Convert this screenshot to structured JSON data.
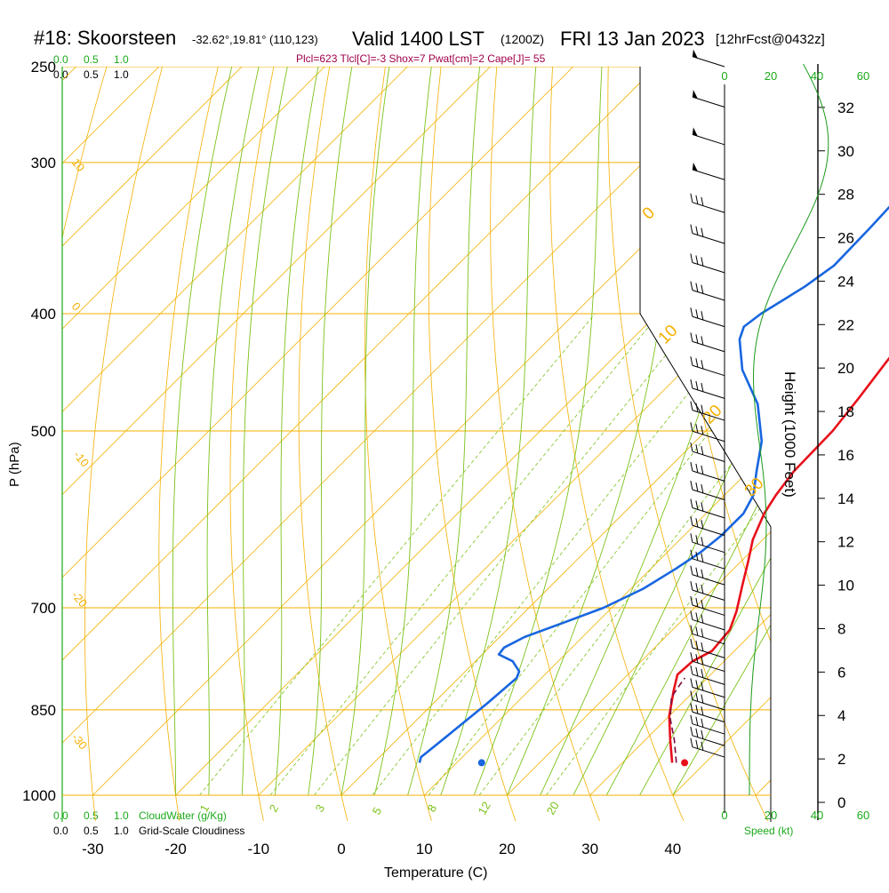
{
  "header": {
    "station": "#18: Skoorsteen",
    "coords": "-32.62°,19.81° (110,123)",
    "valid": "Valid 1400 LST",
    "utc": "(1200Z)",
    "date": "FRI 13 Jan 2023",
    "forecast": "[12hrFcst@0432z]",
    "indices": "Plcl=623 Tlcl[C]=-3 Shox=7 Pwat[cm]=2 Cape[J]= 55"
  },
  "labels": {
    "cloudwater_scale": [
      "0.0",
      "0.5",
      "1.0"
    ],
    "cloudiness_scale": [
      "0.0",
      "0.5",
      "1.0"
    ],
    "cloudwater_title": "CloudWater (g/Kg)",
    "cloudiness_title": "Grid-Scale Cloudiness",
    "speed_title": "Speed (kt)",
    "height_title": "Height (1000 Feet)",
    "pressure_title": "P (hPa)",
    "temperature_title": "Temperature (C)"
  },
  "colors": {
    "isobar": "#f4b000",
    "isotherm": "#f4b000",
    "dry_adiabat": "#f4b000",
    "moist_adiabat": "#7cc21a",
    "mixing_ratio": "#7cc21a",
    "temperature": "#e8101a",
    "dewpoint": "#1866e0",
    "parcel": "#7a0a3c",
    "height_curve": "#1a9a1a",
    "green_text": "#1aaa1a",
    "indices_text": "#a0004a"
  },
  "chart_data": {
    "type": "line",
    "title": "#18: Skoorsteen",
    "xlabel": "Temperature (C)",
    "ylabel": "P (hPa)",
    "x_ticks": [
      -30,
      -20,
      -10,
      0,
      10,
      20,
      30,
      40
    ],
    "y_ticks": [
      250,
      300,
      400,
      500,
      700,
      850,
      1000
    ],
    "dry_adiabat_labels": [
      "10",
      "0",
      "-10",
      "-20",
      "-30"
    ],
    "moist_adiabat_labels": [
      "0",
      "10",
      "20",
      "30"
    ],
    "mixing_ratio_labels": [
      "1",
      "2",
      "3",
      "5",
      "8",
      "12",
      "20"
    ],
    "series": [
      {
        "name": "Temperature",
        "points": [
          [
            36,
            940
          ],
          [
            33,
            900
          ],
          [
            30,
            860
          ],
          [
            27.5,
            820
          ],
          [
            26,
            795
          ],
          [
            26.2,
            775
          ],
          [
            27.3,
            760
          ],
          [
            26.9,
            730
          ],
          [
            25.5,
            705
          ],
          [
            23,
            670
          ],
          [
            20.8,
            640
          ],
          [
            18.8,
            615
          ],
          [
            17,
            585
          ],
          [
            16.2,
            565
          ],
          [
            15.5,
            540
          ],
          [
            15.3,
            500
          ],
          [
            14.5,
            470
          ],
          [
            13.5,
            440
          ],
          [
            12.5,
            410
          ],
          [
            11.5,
            385
          ],
          [
            10,
            350
          ],
          [
            8.5,
            320
          ],
          [
            7,
            300
          ],
          [
            5,
            275
          ],
          [
            3,
            250
          ]
        ]
      },
      {
        "name": "Dewpoint",
        "points": [
          [
            5.5,
            940
          ],
          [
            5,
            930
          ],
          [
            5.5,
            900
          ],
          [
            6.5,
            840
          ],
          [
            7,
            800
          ],
          [
            6.5,
            790
          ],
          [
            4.5,
            775
          ],
          [
            2,
            765
          ],
          [
            1.8,
            755
          ],
          [
            3,
            740
          ],
          [
            6,
            720
          ],
          [
            9,
            700
          ],
          [
            11.5,
            675
          ],
          [
            13,
            650
          ],
          [
            14,
            630
          ],
          [
            14.5,
            610
          ],
          [
            14.5,
            585
          ],
          [
            13.5,
            565
          ],
          [
            11,
            540
          ],
          [
            8,
            510
          ],
          [
            3,
            475
          ],
          [
            -3,
            445
          ],
          [
            -7,
            420
          ],
          [
            -8,
            410
          ],
          [
            -7.5,
            400
          ],
          [
            -5.5,
            380
          ],
          [
            -4.5,
            365
          ],
          [
            -4.7,
            340
          ],
          [
            -5,
            320
          ],
          [
            -5,
            300
          ],
          [
            -4,
            280
          ],
          [
            -4,
            260
          ],
          [
            -3.5,
            250
          ]
        ]
      },
      {
        "name": "Parcel",
        "points": [
          [
            36.5,
            940
          ],
          [
            33.5,
            900
          ],
          [
            30.5,
            865
          ],
          [
            28,
            830
          ],
          [
            27.5,
            810
          ],
          [
            27.3,
            800
          ]
        ]
      }
    ],
    "surface_markers": [
      {
        "name": "Temperature",
        "t": 37.5,
        "p": 940
      },
      {
        "name": "Dewpoint",
        "t": 13,
        "p": 940
      }
    ],
    "height_axis": {
      "ticks": [
        0,
        2,
        4,
        6,
        8,
        10,
        12,
        14,
        16,
        18,
        20,
        22,
        24,
        26,
        28,
        30,
        32
      ],
      "range": [
        0,
        34
      ]
    },
    "cloudwater_axis": {
      "ticks": [
        0.0,
        0.5,
        1.0
      ]
    },
    "speed_axis": {
      "ticks_top": [
        0,
        20,
        40,
        60
      ],
      "ticks_bottom": [
        0,
        20,
        40,
        60
      ]
    },
    "wind_barbs": {
      "description": "westerly winds increasing with height",
      "levels_hpa": [
        250,
        270,
        290,
        310,
        330,
        350,
        370,
        390,
        410,
        430,
        450,
        470,
        490,
        510,
        530,
        550,
        570,
        590,
        610,
        630,
        650,
        670,
        690,
        710,
        730,
        750,
        770,
        790,
        810,
        830,
        850,
        870,
        890,
        910,
        930
      ]
    }
  }
}
